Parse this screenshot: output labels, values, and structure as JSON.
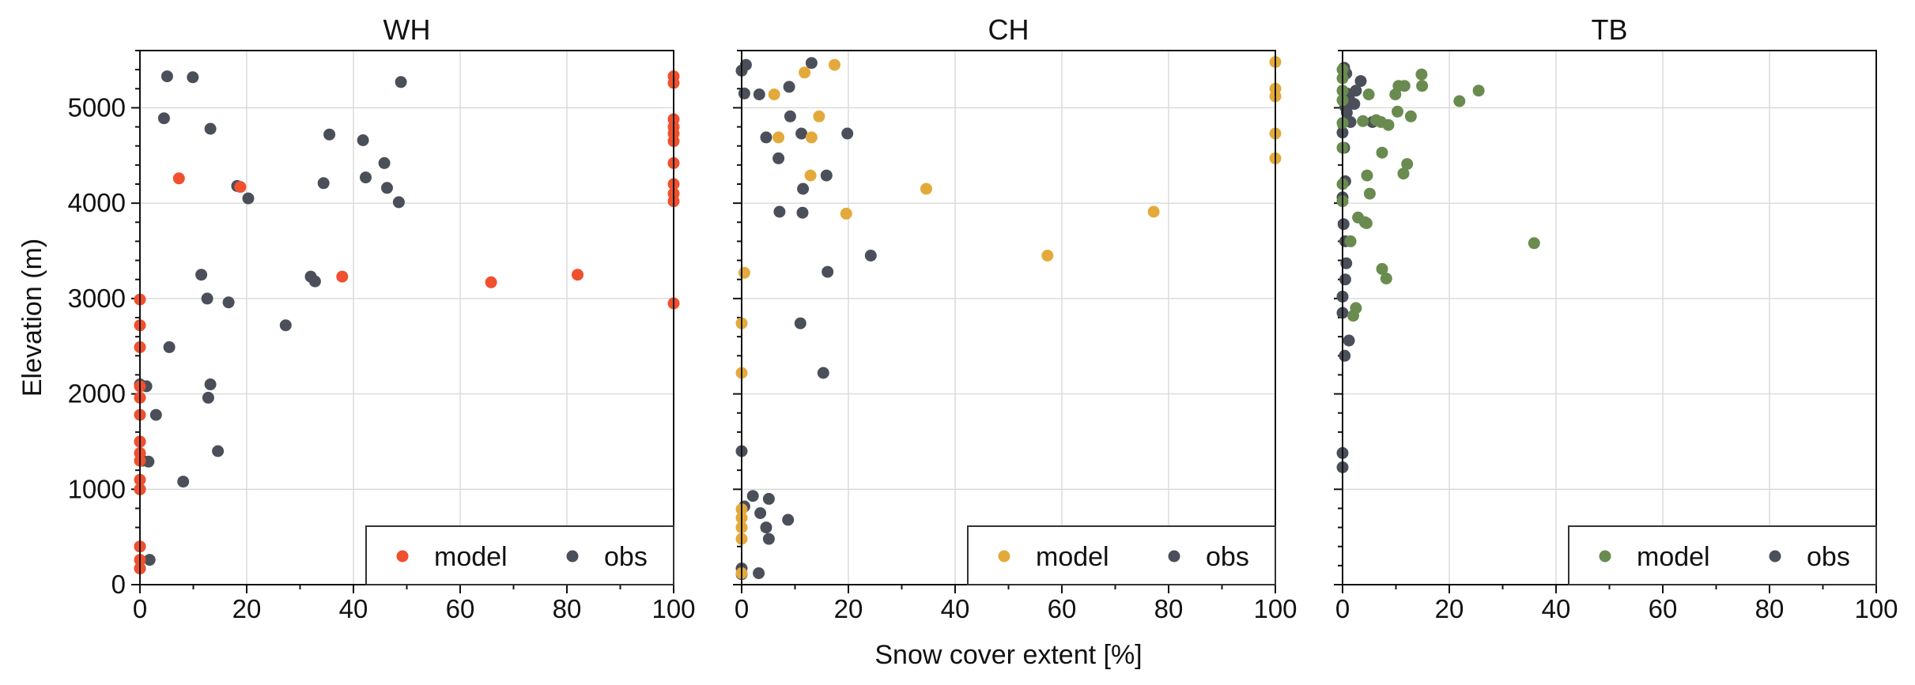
{
  "figure": {
    "xlabel": "Snow cover extent [%]",
    "ylabel": "Elevation (m)"
  },
  "chart_data": [
    {
      "type": "scatter",
      "title": "WH",
      "xlim": [
        0,
        100
      ],
      "ylim": [
        0,
        5600
      ],
      "xticks": [
        0,
        20,
        40,
        60,
        80,
        100
      ],
      "yticks": [
        0,
        1000,
        2000,
        3000,
        4000,
        5000
      ],
      "grid": true,
      "legend_position": "lower-right",
      "series": [
        {
          "name": "model",
          "color": "#f0502d",
          "points": [
            [
              0,
              170
            ],
            [
              0,
              260
            ],
            [
              0,
              400
            ],
            [
              0,
              1000
            ],
            [
              0,
              1100
            ],
            [
              0,
              1300
            ],
            [
              0,
              1380
            ],
            [
              0,
              1500
            ],
            [
              0,
              1780
            ],
            [
              0,
              1960
            ],
            [
              0,
              2080
            ],
            [
              0,
              2490
            ],
            [
              0,
              2720
            ],
            [
              0,
              2990
            ],
            [
              7.3,
              4260
            ],
            [
              18.8,
              4170
            ],
            [
              37.9,
              3230
            ],
            [
              65.8,
              3170
            ],
            [
              82,
              3250
            ],
            [
              100,
              2950
            ],
            [
              100,
              4020
            ],
            [
              100,
              4100
            ],
            [
              100,
              4200
            ],
            [
              100,
              4420
            ],
            [
              100,
              4650
            ],
            [
              100,
              4730
            ],
            [
              100,
              4800
            ],
            [
              100,
              4880
            ],
            [
              100,
              5260
            ],
            [
              100,
              5330
            ]
          ]
        },
        {
          "name": "obs",
          "color": "#4b4f59",
          "points": [
            [
              0,
              170
            ],
            [
              1.8,
              260
            ],
            [
              0,
              400
            ],
            [
              0,
              1000
            ],
            [
              1.6,
              1290
            ],
            [
              0,
              1500
            ],
            [
              0.5,
              1300
            ],
            [
              3,
              1780
            ],
            [
              1.2,
              2080
            ],
            [
              0,
              2100
            ],
            [
              8.1,
              1080
            ],
            [
              14.6,
              1400
            ],
            [
              12.8,
              1960
            ],
            [
              13.2,
              2100
            ],
            [
              5.5,
              2490
            ],
            [
              27.3,
              2720
            ],
            [
              12.6,
              3000
            ],
            [
              16.6,
              2960
            ],
            [
              11.5,
              3250
            ],
            [
              32,
              3230
            ],
            [
              32.8,
              3180
            ],
            [
              18.2,
              4180
            ],
            [
              20.3,
              4050
            ],
            [
              34.4,
              4210
            ],
            [
              42.3,
              4270
            ],
            [
              46.3,
              4160
            ],
            [
              48.5,
              4010
            ],
            [
              41.8,
              4660
            ],
            [
              45.8,
              4420
            ],
            [
              35.5,
              4720
            ],
            [
              13.2,
              4780
            ],
            [
              4.5,
              4890
            ],
            [
              5.1,
              5330
            ],
            [
              9.9,
              5320
            ],
            [
              48.9,
              5270
            ]
          ]
        }
      ]
    },
    {
      "type": "scatter",
      "title": "CH",
      "xlim": [
        0,
        100
      ],
      "ylim": [
        0,
        5600
      ],
      "xticks": [
        0,
        20,
        40,
        60,
        80,
        100
      ],
      "yticks": [
        0,
        1000,
        2000,
        3000,
        4000,
        5000
      ],
      "grid": true,
      "legend_position": "lower-right",
      "series": [
        {
          "name": "model",
          "color": "#e3aa3b",
          "points": [
            [
              0,
              120
            ],
            [
              0,
              480
            ],
            [
              0,
              600
            ],
            [
              0,
              700
            ],
            [
              0,
              790
            ],
            [
              0,
              2220
            ],
            [
              0,
              2740
            ],
            [
              0.5,
              3270
            ],
            [
              12.9,
              4290
            ],
            [
              13.1,
              4690
            ],
            [
              14.5,
              4910
            ],
            [
              6.1,
              5140
            ],
            [
              6.9,
              4690
            ],
            [
              11.8,
              5370
            ],
            [
              17.4,
              5450
            ],
            [
              19.6,
              3890
            ],
            [
              34.6,
              4150
            ],
            [
              57.3,
              3450
            ],
            [
              77.2,
              3910
            ],
            [
              100,
              4470
            ],
            [
              100,
              4730
            ],
            [
              100,
              5120
            ],
            [
              100,
              5200
            ],
            [
              100,
              5480
            ]
          ]
        },
        {
          "name": "obs",
          "color": "#4b4f59",
          "points": [
            [
              0,
              110
            ],
            [
              0,
              170
            ],
            [
              3.2,
              120
            ],
            [
              5.1,
              480
            ],
            [
              4.6,
              600
            ],
            [
              8.7,
              680
            ],
            [
              3.5,
              750
            ],
            [
              0.5,
              820
            ],
            [
              2.1,
              930
            ],
            [
              5.1,
              900
            ],
            [
              0,
              1400
            ],
            [
              15.3,
              2220
            ],
            [
              11,
              2740
            ],
            [
              16.1,
              3280
            ],
            [
              24.2,
              3450
            ],
            [
              7.1,
              3910
            ],
            [
              11.4,
              3900
            ],
            [
              11.5,
              4150
            ],
            [
              15.9,
              4290
            ],
            [
              6.9,
              4470
            ],
            [
              4.6,
              4690
            ],
            [
              11.2,
              4730
            ],
            [
              19.8,
              4730
            ],
            [
              9.1,
              4910
            ],
            [
              8.9,
              5220
            ],
            [
              3.3,
              5140
            ],
            [
              0.5,
              5150
            ],
            [
              0,
              5390
            ],
            [
              0.8,
              5450
            ],
            [
              13.1,
              5470
            ]
          ]
        }
      ]
    },
    {
      "type": "scatter",
      "title": "TB",
      "xlim": [
        0,
        100
      ],
      "ylim": [
        0,
        5600
      ],
      "xticks": [
        0,
        20,
        40,
        60,
        80,
        100
      ],
      "yticks": [
        0,
        1000,
        2000,
        3000,
        4000,
        5000
      ],
      "grid": true,
      "legend_position": "lower-right",
      "series": [
        {
          "name": "model",
          "color": "#6a8b4f",
          "points": [
            [
              0,
              4020
            ],
            [
              0,
              4200
            ],
            [
              0,
              4580
            ],
            [
              0,
              4840
            ],
            [
              0,
              5080
            ],
            [
              0,
              5180
            ],
            [
              0,
              5310
            ],
            [
              0,
              5400
            ],
            [
              2,
              2820
            ],
            [
              2.5,
              2900
            ],
            [
              1.5,
              3600
            ],
            [
              2.9,
              3850
            ],
            [
              4.2,
              3800
            ],
            [
              4.5,
              3790
            ],
            [
              8.2,
              3210
            ],
            [
              7.4,
              3310
            ],
            [
              35.9,
              3580
            ],
            [
              5.1,
              4100
            ],
            [
              4.6,
              4290
            ],
            [
              11.4,
              4310
            ],
            [
              12.1,
              4410
            ],
            [
              7.4,
              4530
            ],
            [
              7.2,
              4850
            ],
            [
              8.6,
              4820
            ],
            [
              12.8,
              4910
            ],
            [
              10.3,
              4960
            ],
            [
              9.9,
              5140
            ],
            [
              10.5,
              5230
            ],
            [
              11.6,
              5230
            ],
            [
              14.9,
              5230
            ],
            [
              14.8,
              5350
            ],
            [
              4.9,
              5140
            ],
            [
              21.9,
              5070
            ],
            [
              25.5,
              5180
            ],
            [
              6.3,
              4870
            ],
            [
              3.8,
              4860
            ]
          ]
        },
        {
          "name": "obs",
          "color": "#4b4f59",
          "points": [
            [
              0,
              1230
            ],
            [
              0,
              1380
            ],
            [
              0.4,
              2400
            ],
            [
              1.2,
              2560
            ],
            [
              0,
              2850
            ],
            [
              0,
              3020
            ],
            [
              0.5,
              3200
            ],
            [
              0.7,
              3370
            ],
            [
              0.5,
              3600
            ],
            [
              0.2,
              3780
            ],
            [
              0,
              4060
            ],
            [
              0.5,
              4230
            ],
            [
              0.3,
              4580
            ],
            [
              0,
              4740
            ],
            [
              1.5,
              4850
            ],
            [
              5.6,
              4850
            ],
            [
              0.8,
              4950
            ],
            [
              0.5,
              5010
            ],
            [
              2.2,
              5040
            ],
            [
              1.2,
              5100
            ],
            [
              2.5,
              5180
            ],
            [
              0.8,
              5150
            ],
            [
              3.4,
              5280
            ],
            [
              0.7,
              5360
            ],
            [
              0.3,
              5420
            ]
          ]
        }
      ]
    }
  ]
}
